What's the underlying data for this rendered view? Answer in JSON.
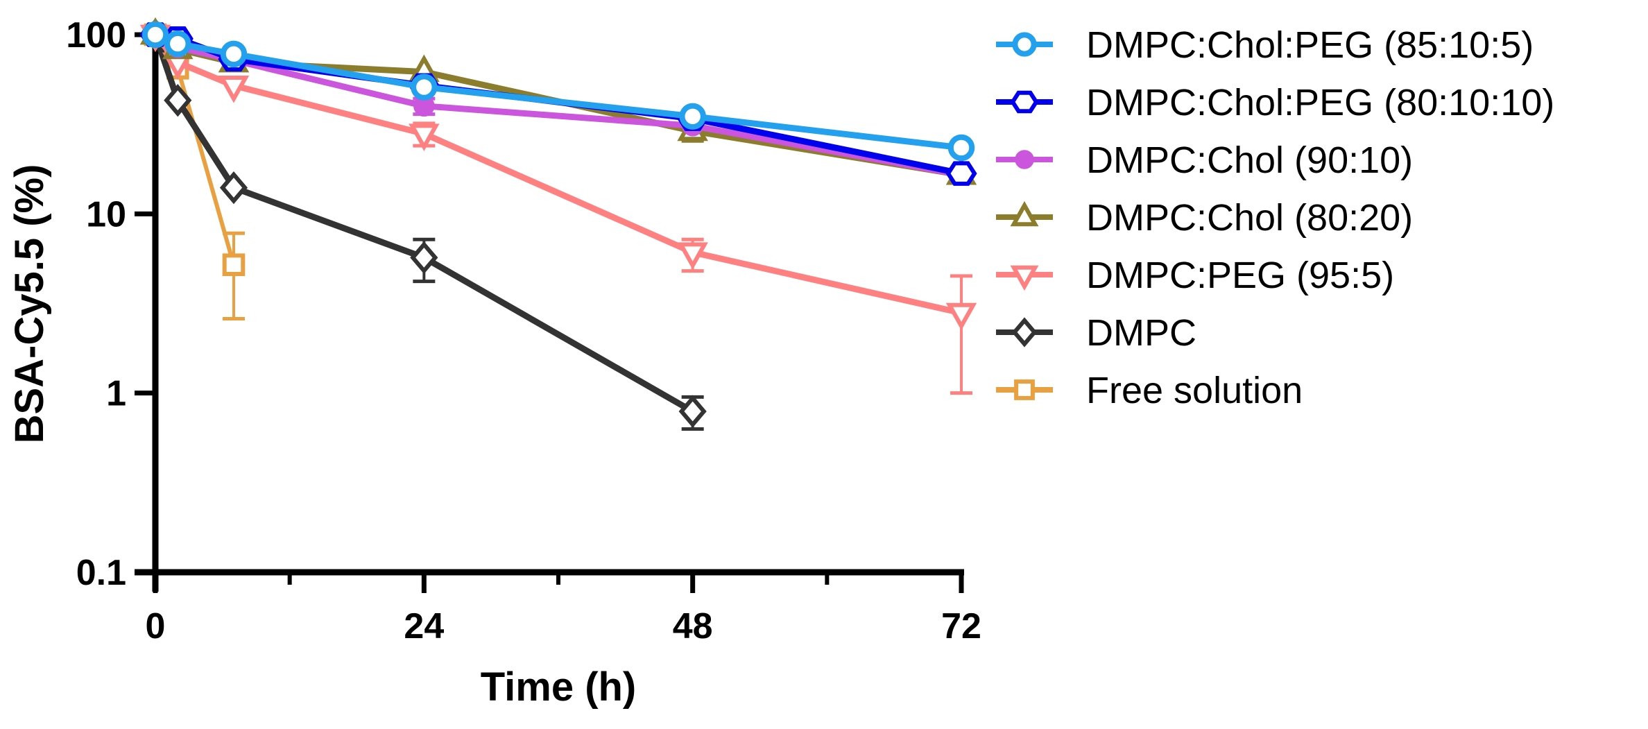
{
  "chart_data": {
    "type": "line",
    "title": "",
    "xlabel": "Time (h)",
    "ylabel": "BSA-Cy5.5 (%)",
    "xlim": [
      0,
      72
    ],
    "ylim": [
      0.1,
      100
    ],
    "yscale": "log",
    "grid": false,
    "legend_position": "right",
    "x_ticks": [
      0,
      24,
      48,
      72
    ],
    "x_tick_labels": [
      "0",
      "24",
      "48",
      "72"
    ],
    "x_minor_ticks": [
      12,
      36,
      60
    ],
    "y_ticks": [
      100,
      10,
      1,
      0.1
    ],
    "y_tick_labels": [
      "100",
      "10",
      "1",
      "0.1"
    ],
    "series": [
      {
        "name": "DMPC:Chol:PEG (85:10:5)",
        "color": "#23a0ee",
        "marker": "circle-open",
        "x": [
          0,
          2,
          7,
          24,
          48,
          72
        ],
        "y": [
          100,
          89,
          78,
          51,
          35,
          23.4
        ],
        "error_low": [
          null,
          null,
          null,
          null,
          null,
          null
        ],
        "error_high": [
          null,
          null,
          null,
          null,
          null,
          null
        ]
      },
      {
        "name": "DMPC:Chol:PEG (80:10:10)",
        "color": "#0000ee",
        "marker": "hexagon-open",
        "x": [
          0,
          2,
          7,
          24,
          48,
          72
        ],
        "y": [
          100,
          95,
          73,
          52,
          34,
          16.8
        ],
        "error_low": [
          null,
          null,
          null,
          null,
          null,
          null
        ],
        "error_high": [
          null,
          null,
          null,
          null,
          null,
          null
        ]
      },
      {
        "name": "DMPC:Chol (90:10)",
        "color": "#cc55dd",
        "marker": "circle-filled",
        "x": [
          0,
          2,
          7,
          24,
          48,
          72
        ],
        "y": [
          100,
          85,
          72,
          40,
          31,
          16.5
        ],
        "error_low": [
          null,
          null,
          null,
          36,
          null,
          null
        ],
        "error_high": [
          null,
          null,
          null,
          44,
          null,
          null
        ]
      },
      {
        "name": "DMPC:Chol (80:20)",
        "color": "#8b7d2b",
        "marker": "triangle-up-open",
        "x": [
          0,
          2,
          7,
          24,
          48,
          72
        ],
        "y": [
          100,
          83,
          70,
          62,
          29,
          16.5
        ],
        "error_low": [
          null,
          null,
          null,
          null,
          25.5,
          null
        ],
        "error_high": [
          null,
          null,
          null,
          null,
          32,
          null
        ]
      },
      {
        "name": "DMPC:PEG (95:5)",
        "color": "#ff8080",
        "marker": "triangle-down-open",
        "x": [
          0,
          2,
          7,
          24,
          48,
          72
        ],
        "y": [
          100,
          70,
          52,
          28,
          6.1,
          2.8
        ],
        "error_low": [
          null,
          null,
          null,
          24,
          4.8,
          1.0
        ],
        "error_high": [
          null,
          null,
          null,
          32,
          7.2,
          4.5
        ]
      },
      {
        "name": "DMPC",
        "color": "#333333",
        "marker": "diamond-open",
        "x": [
          0,
          2,
          7,
          24,
          48
        ],
        "y": [
          100,
          43,
          14,
          5.7,
          0.79
        ],
        "error_low": [
          null,
          null,
          null,
          4.2,
          0.63
        ],
        "error_high": [
          null,
          null,
          null,
          7.2,
          0.95
        ]
      },
      {
        "name": "Free solution",
        "color": "#e8a040",
        "marker": "square-open",
        "x": [
          0,
          2,
          7
        ],
        "y": [
          100,
          65,
          5.2
        ],
        "error_low": [
          null,
          null,
          2.6
        ],
        "error_high": [
          null,
          null,
          7.8
        ]
      }
    ]
  }
}
